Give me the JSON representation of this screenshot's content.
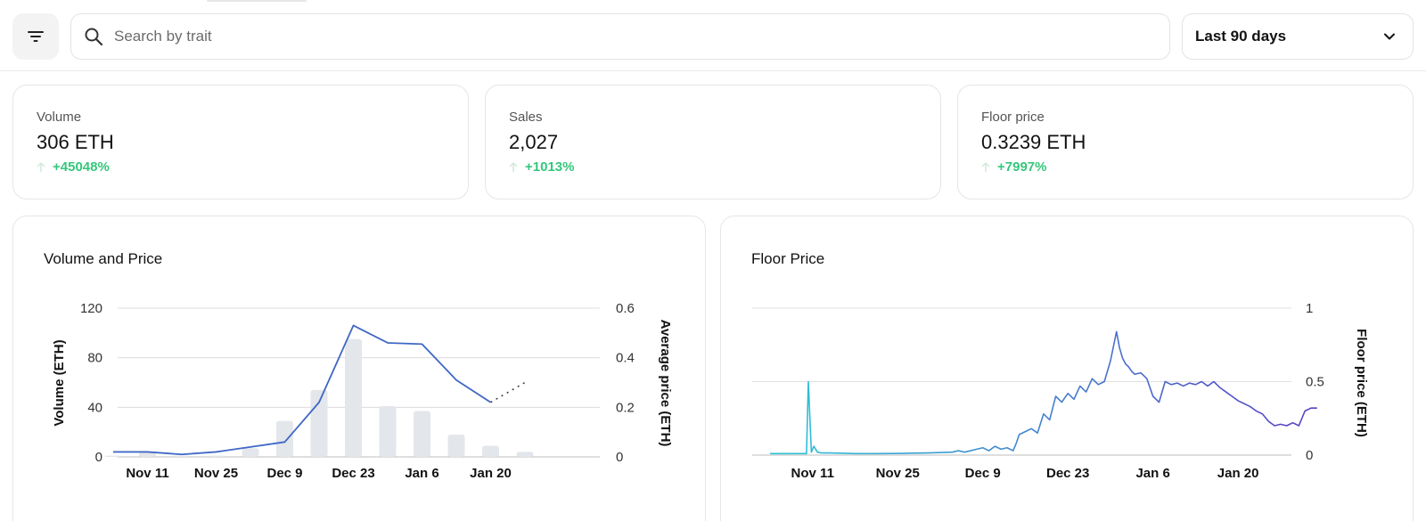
{
  "toolbar": {
    "search_placeholder": "Search by trait",
    "range_value": "Last 90 days"
  },
  "stats": [
    {
      "label": "Volume",
      "value": "306 ETH",
      "change": "+45048%"
    },
    {
      "label": "Sales",
      "value": "2,027",
      "change": "+1013%"
    },
    {
      "label": "Floor price",
      "value": "0.3239 ETH",
      "change": "+7997%"
    }
  ],
  "icons": {
    "filter": "filter-icon",
    "search": "search-icon",
    "chevron": "chevron-down-icon",
    "arrow_up": "arrow-up-icon"
  },
  "colors": {
    "positive": "#34c77b",
    "bar": "#e3e6ea",
    "line": "#3f67c6",
    "floor_start": "#2ec5d6",
    "floor_end": "#5a3fc6"
  },
  "chart_data": [
    {
      "type": "bar",
      "title": "Volume and Price",
      "ylabel": "Volume (ETH)",
      "y2label": "Average price (ETH)",
      "x_ticks": [
        "Nov 11",
        "Nov 25",
        "Dec 9",
        "Dec 23",
        "Jan 6",
        "Jan 20"
      ],
      "y_ticks": [
        0,
        40,
        80,
        120
      ],
      "y2_ticks": [
        0,
        0.2,
        0.4,
        0.6
      ],
      "ylim": [
        0,
        120
      ],
      "y2lim": [
        0,
        0.6
      ],
      "grid": true,
      "bars": {
        "dates": [
          "Nov 4",
          "Nov 11",
          "Nov 18",
          "Nov 25",
          "Dec 2",
          "Dec 9",
          "Dec 16",
          "Dec 23",
          "Dec 30",
          "Jan 6",
          "Jan 13",
          "Jan 20",
          "Jan 27"
        ],
        "values": [
          1,
          4,
          1,
          1,
          7,
          29,
          54,
          95,
          41,
          37,
          18,
          9,
          4
        ]
      },
      "series": [
        {
          "name": "Average price (ETH)",
          "dates": [
            "Nov 4",
            "Nov 11",
            "Nov 18",
            "Nov 25",
            "Dec 2",
            "Dec 9",
            "Dec 16",
            "Dec 23",
            "Dec 30",
            "Jan 6",
            "Jan 13",
            "Jan 20"
          ],
          "values": [
            0.02,
            0.02,
            0.01,
            0.02,
            0.04,
            0.06,
            0.22,
            0.53,
            0.46,
            0.455,
            0.31,
            0.22
          ]
        },
        {
          "name": "Projected",
          "dates": [
            "Jan 20",
            "Jan 27"
          ],
          "values": [
            0.22,
            0.3
          ]
        }
      ]
    },
    {
      "type": "line",
      "title": "Floor Price",
      "y2label": "Floor price (ETH)",
      "x_ticks": [
        "Nov 11",
        "Nov 25",
        "Dec 9",
        "Dec 23",
        "Jan 6",
        "Jan 20"
      ],
      "y_ticks": [
        0,
        0.5,
        1
      ],
      "ylim": [
        0,
        1
      ],
      "grid": true,
      "series": [
        {
          "days": [
            0,
            3,
            6,
            6.3,
            6.8,
            7.2,
            7.8,
            8.5,
            10,
            14,
            18,
            22,
            26,
            30,
            31,
            32,
            33,
            34,
            35,
            36,
            37,
            38,
            39,
            40,
            40.5,
            41,
            42,
            43,
            44,
            45,
            46,
            47,
            48,
            49,
            50,
            51,
            52,
            53,
            54,
            55,
            56,
            57,
            57.5,
            58,
            58.5,
            59,
            59.5,
            60,
            61,
            62,
            63,
            64,
            65,
            66,
            67,
            68,
            69,
            70,
            71,
            72,
            73,
            74,
            75,
            76,
            77,
            78,
            79,
            80,
            81,
            82,
            83,
            84,
            85,
            86,
            87,
            88,
            89,
            90
          ],
          "values": [
            0.01,
            0.01,
            0.01,
            0.5,
            0.02,
            0.06,
            0.02,
            0.015,
            0.015,
            0.01,
            0.01,
            0.012,
            0.015,
            0.02,
            0.03,
            0.02,
            0.03,
            0.04,
            0.05,
            0.03,
            0.06,
            0.04,
            0.05,
            0.03,
            0.08,
            0.14,
            0.16,
            0.18,
            0.15,
            0.28,
            0.24,
            0.4,
            0.36,
            0.42,
            0.38,
            0.47,
            0.43,
            0.52,
            0.48,
            0.5,
            0.64,
            0.84,
            0.73,
            0.66,
            0.62,
            0.6,
            0.57,
            0.55,
            0.56,
            0.52,
            0.4,
            0.36,
            0.5,
            0.48,
            0.49,
            0.47,
            0.49,
            0.48,
            0.5,
            0.47,
            0.5,
            0.46,
            0.43,
            0.4,
            0.37,
            0.35,
            0.33,
            0.3,
            0.28,
            0.23,
            0.2,
            0.21,
            0.2,
            0.22,
            0.2,
            0.3,
            0.32,
            0.32
          ]
        }
      ]
    }
  ]
}
